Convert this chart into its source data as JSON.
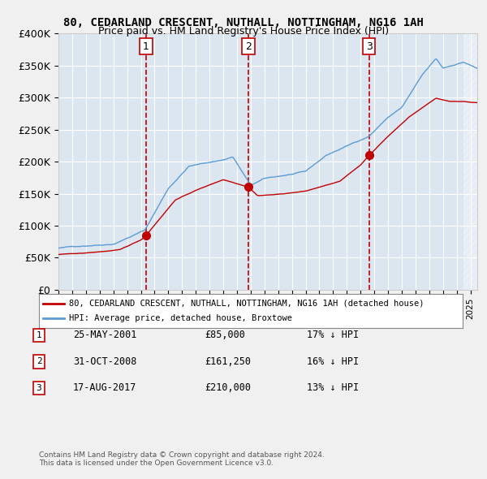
{
  "title": "80, CEDARLAND CRESCENT, NUTHALL, NOTTINGHAM, NG16 1AH",
  "subtitle": "Price paid vs. HM Land Registry's House Price Index (HPI)",
  "legend_line1": "80, CEDARLAND CRESCENT, NUTHALL, NOTTINGHAM, NG16 1AH (detached house)",
  "legend_line2": "HPI: Average price, detached house, Broxtowe",
  "transactions": [
    {
      "num": 1,
      "date": "25-MAY-2001",
      "price": 85000,
      "pct": "17% ↓ HPI"
    },
    {
      "num": 2,
      "date": "31-OCT-2008",
      "price": 161250,
      "pct": "16% ↓ HPI"
    },
    {
      "num": 3,
      "date": "17-AUG-2017",
      "price": 210000,
      "pct": "13% ↓ HPI"
    }
  ],
  "transaction_dates_decimal": [
    2001.388,
    2008.835,
    2017.624
  ],
  "hpi_color": "#5b9bd5",
  "price_color": "#c00000",
  "bg_color": "#dce6f1",
  "grid_color": "#ffffff",
  "footnote": "Contains HM Land Registry data © Crown copyright and database right 2024.\nThis data is licensed under the Open Government Licence v3.0.",
  "ylim": [
    0,
    400000
  ],
  "yticks": [
    0,
    50000,
    100000,
    150000,
    200000,
    250000,
    300000,
    350000,
    400000
  ],
  "ytick_labels": [
    "£0",
    "£50K",
    "£100K",
    "£150K",
    "£200K",
    "£250K",
    "£300K",
    "£350K",
    "£400K"
  ],
  "xstart": 1995.0,
  "xend": 2025.5
}
